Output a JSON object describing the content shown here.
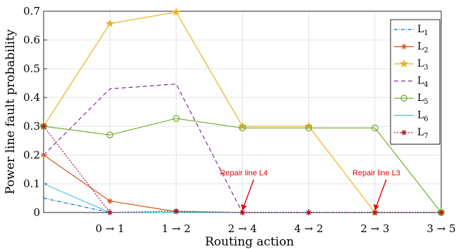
{
  "chart_data": {
    "type": "line",
    "xlabel": "Routing action",
    "ylabel": "Power line fault probability",
    "categories": [
      "",
      "0 → 1",
      "1 → 2",
      "2 → 4",
      "4 → 2",
      "2 → 3",
      "3 → 5"
    ],
    "ylim": [
      0,
      0.7
    ],
    "yticks": [
      "0",
      "0.1",
      "0.2",
      "0.3",
      "0.4",
      "0.5",
      "0.6",
      "0.7"
    ],
    "grid": true,
    "legend_position": "right",
    "series": [
      {
        "name": "L",
        "sub": "1",
        "color": "#0072bd",
        "dash": "5,2,1,2",
        "marker": "none",
        "values": [
          0.05,
          0.0,
          0.0,
          0.0,
          0.0,
          0.0,
          0.0
        ]
      },
      {
        "name": "L",
        "sub": "2",
        "color": "#d95319",
        "dash": "",
        "marker": "asterisk",
        "values": [
          0.2,
          0.04,
          0.003,
          0.0,
          0.0,
          0.0,
          0.0
        ]
      },
      {
        "name": "L",
        "sub": "3",
        "color": "#edb120",
        "dash": "",
        "marker": "star",
        "values": [
          0.3,
          0.657,
          0.697,
          0.3,
          0.3,
          0.0,
          0.0
        ]
      },
      {
        "name": "L",
        "sub": "4",
        "color": "#7e2f8e",
        "dash": "6,4",
        "marker": "none",
        "values": [
          0.2,
          0.43,
          0.447,
          0.0,
          0.0,
          0.0,
          0.0
        ]
      },
      {
        "name": "L",
        "sub": "5",
        "color": "#77ac30",
        "dash": "",
        "marker": "circle",
        "values": [
          0.3,
          0.27,
          0.327,
          0.294,
          0.294,
          0.294,
          0.0
        ]
      },
      {
        "name": "L",
        "sub": "6",
        "color": "#4dbeee",
        "dash": "",
        "marker": "none",
        "values": [
          0.1,
          0.0,
          0.0,
          0.0,
          0.0,
          0.0,
          0.0
        ]
      },
      {
        "name": "L",
        "sub": "7",
        "color": "#a2142f",
        "dash": "2,2",
        "marker": "asterisk",
        "values": [
          0.3,
          0.0,
          0.005,
          0.0,
          0.0,
          0.0,
          0.0
        ]
      }
    ],
    "annotations": [
      {
        "text": "Repair line L4",
        "x_index": 3,
        "y": 0.0
      },
      {
        "text": "Repair line L3",
        "x_index": 5,
        "y": 0.0
      }
    ]
  }
}
